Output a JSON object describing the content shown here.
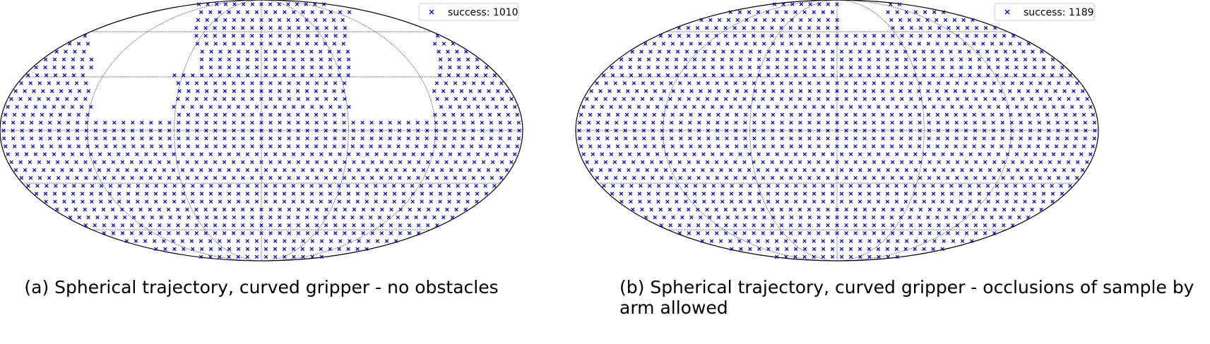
{
  "figures": [
    {
      "legend_label": "success: 1010",
      "caption": "(a) Spherical trajectory, curved gripper - no obstacles"
    },
    {
      "legend_label": "success: 1189",
      "caption": "(b) Spherical trajectory, curved gripper - occlusions of sample by arm allowed"
    }
  ]
}
